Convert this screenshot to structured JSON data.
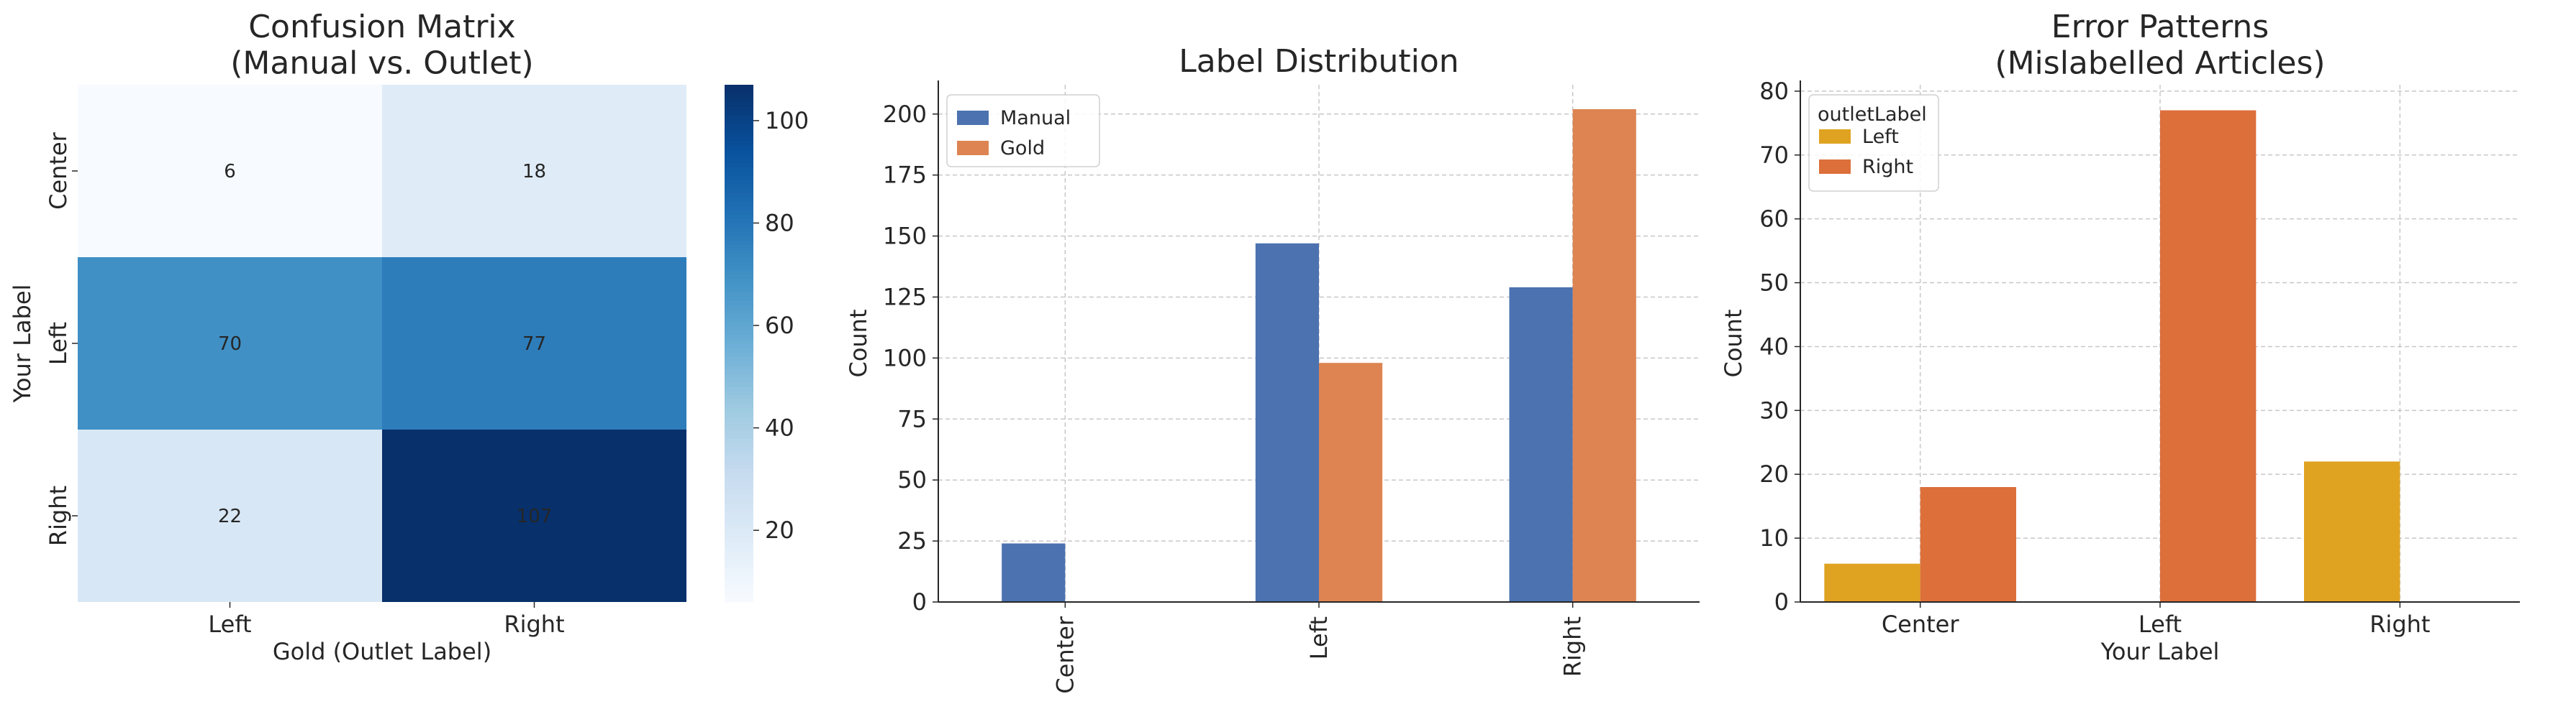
{
  "chart_data": [
    {
      "type": "heatmap",
      "title": "Confusion Matrix\n(Manual vs. Outlet)",
      "xlabel": "Gold (Outlet Label)",
      "ylabel": "Your Label",
      "x_categories": [
        "Left",
        "Right"
      ],
      "y_categories": [
        "Center",
        "Left",
        "Right"
      ],
      "values": [
        [
          6,
          18
        ],
        [
          70,
          77
        ],
        [
          22,
          107
        ]
      ],
      "colorbar": {
        "ticks": [
          20,
          40,
          60,
          80,
          100
        ],
        "range": [
          6,
          107
        ],
        "colormap": "Blues"
      }
    },
    {
      "type": "bar",
      "title": "Label Distribution",
      "xlabel": "",
      "ylabel": "Count",
      "categories": [
        "Center",
        "Left",
        "Right"
      ],
      "series": [
        {
          "name": "Manual",
          "values": [
            24,
            147,
            129
          ],
          "color": "#4c72b0"
        },
        {
          "name": "Gold",
          "values": [
            0,
            98,
            202
          ],
          "color": "#dd8452"
        }
      ],
      "ylim": [
        0,
        212
      ],
      "yticks": [
        0,
        25,
        50,
        75,
        100,
        125,
        150,
        175,
        200
      ],
      "grid": true,
      "legend": "top-left"
    },
    {
      "type": "bar",
      "title": "Error Patterns\n(Mislabelled Articles)",
      "xlabel": "Your Label",
      "ylabel": "Count",
      "categories": [
        "Center",
        "Left",
        "Right"
      ],
      "legend_title": "outletLabel",
      "series": [
        {
          "name": "Left",
          "values": [
            6,
            0,
            22
          ],
          "color": "#e0a321"
        },
        {
          "name": "Right",
          "values": [
            18,
            77,
            0
          ],
          "color": "#dd6f3a"
        }
      ],
      "ylim": [
        0,
        81
      ],
      "yticks": [
        0,
        10,
        20,
        30,
        40,
        50,
        60,
        70,
        80
      ],
      "grid": true,
      "legend": "top-left"
    }
  ]
}
